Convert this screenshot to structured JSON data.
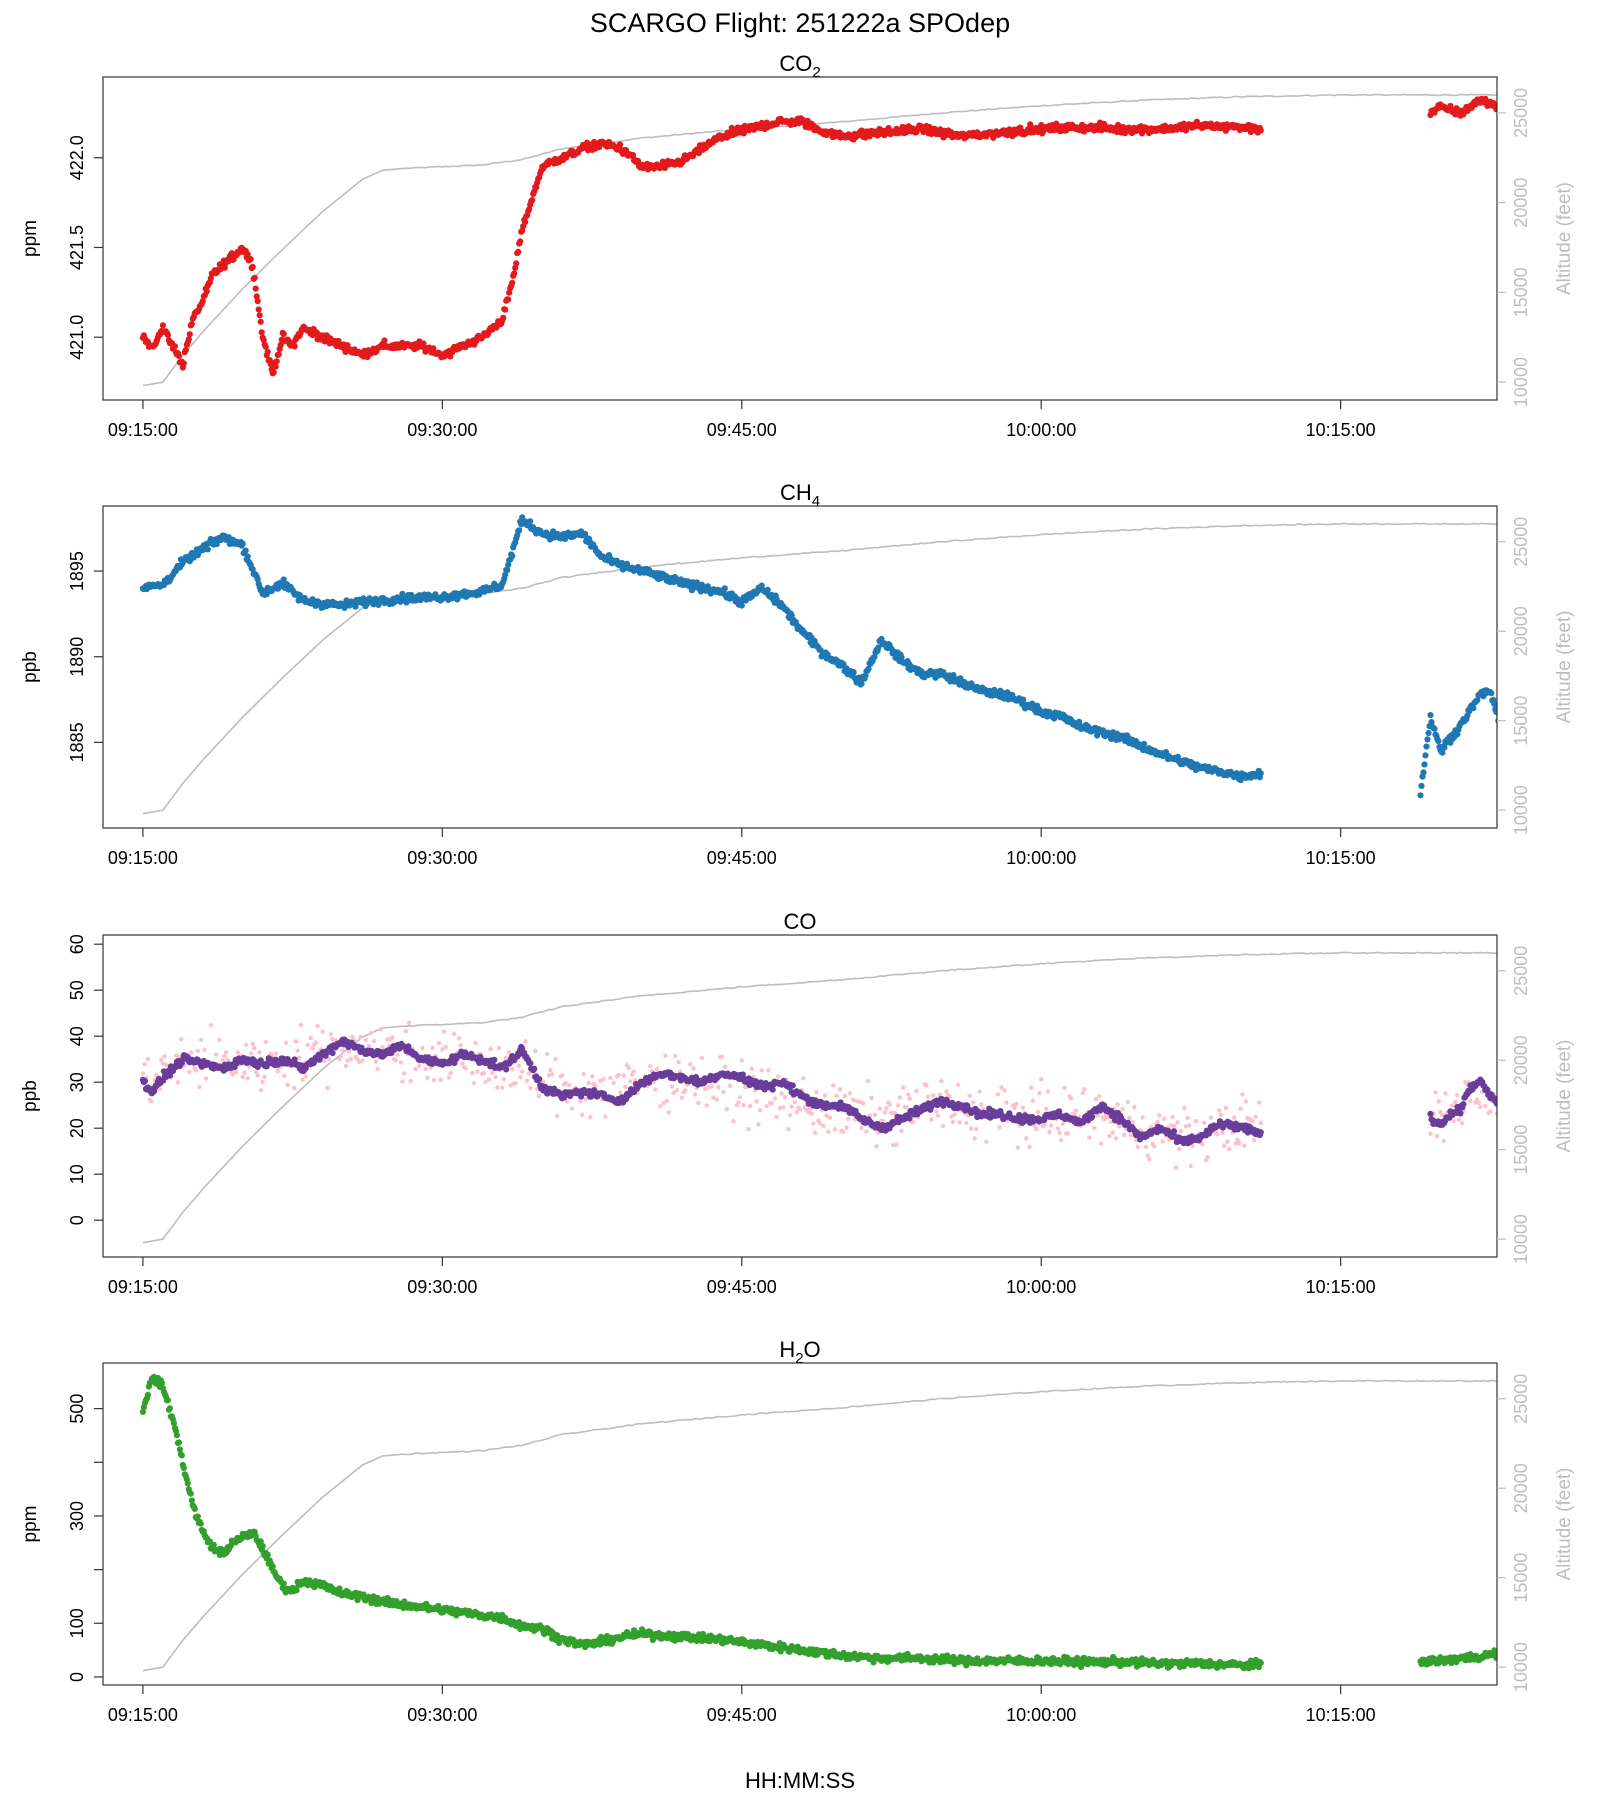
{
  "figure": {
    "title": "SCARGO Flight: 251222a  SPOdep",
    "xlabel": "HH:MM:SS",
    "x_ticks": [
      "09:15:00",
      "09:30:00",
      "09:45:00",
      "10:00:00",
      "10:15:00"
    ],
    "altitude_axis_label": "Altitude (feet)",
    "altitude_ticks": [
      10000,
      15000,
      20000,
      25000
    ]
  },
  "colors": {
    "co2": "#e31a1c",
    "ch4": "#1f78b4",
    "co_raw": "#ffc0cb",
    "co_avg": "#6a3d9a",
    "h2o": "#33a02c",
    "altitude": "#bdbdbd"
  },
  "chart_data": [
    {
      "type": "scatter",
      "title_main": "CO",
      "title_sub": "2",
      "ylabel": "ppm",
      "xlim": [
        "09:13:00",
        "10:22:50"
      ],
      "ylim": [
        420.65,
        422.45
      ],
      "y_ticks": [
        421.0,
        421.5,
        422.0
      ],
      "y_tick_labels": [
        "421.0",
        "421.5",
        "422.0"
      ],
      "altitude_ylim": [
        9000,
        27000
      ],
      "series": [
        {
          "x": [
            "09:15:00",
            "09:15:30",
            "09:16:00",
            "09:16:30",
            "09:17:00",
            "09:17:30",
            "09:18:00",
            "09:18:30",
            "09:19:00",
            "09:19:30",
            "09:20:00",
            "09:20:30",
            "09:21:00",
            "09:21:30",
            "09:22:00",
            "09:22:30",
            "09:23:00",
            "09:24:00",
            "09:25:00",
            "09:26:00",
            "09:27:00",
            "09:28:00",
            "09:29:00",
            "09:30:00",
            "09:31:00",
            "09:32:00",
            "09:32:30",
            "09:33:00",
            "09:33:30",
            "09:34:00",
            "09:35:00",
            "09:36:00",
            "09:37:00",
            "09:38:00",
            "09:39:00",
            "09:40:00",
            "09:41:00",
            "09:42:00",
            "09:43:00",
            "09:44:00",
            "09:45:00",
            "09:46:00",
            "09:47:00",
            "09:48:00",
            "09:49:00",
            "09:50:00",
            "09:52:00",
            "09:54:00",
            "09:56:00",
            "09:58:00",
            "10:00:00",
            "10:02:00",
            "10:04:00",
            "10:06:00",
            "10:08:00",
            "10:10:00",
            "10:11:00"
          ],
          "y": [
            421.0,
            420.95,
            421.05,
            420.95,
            420.85,
            421.1,
            421.2,
            421.35,
            421.4,
            421.45,
            421.5,
            421.4,
            421.0,
            420.8,
            421.0,
            420.95,
            421.05,
            421.0,
            420.95,
            420.9,
            420.95,
            420.95,
            420.95,
            420.9,
            420.95,
            421.0,
            421.05,
            421.1,
            421.3,
            421.6,
            421.95,
            422.0,
            422.05,
            422.08,
            422.05,
            421.95,
            421.95,
            421.98,
            422.05,
            422.12,
            422.15,
            422.18,
            422.2,
            422.2,
            422.15,
            422.12,
            422.14,
            422.16,
            422.12,
            422.14,
            422.16,
            422.17,
            422.16,
            422.16,
            422.18,
            422.17,
            422.16
          ]
        },
        {
          "x": [
            "10:19:30",
            "10:20:00",
            "10:21:00",
            "10:22:00",
            "10:23:00",
            "10:24:00",
            "10:24:30"
          ],
          "y": [
            422.25,
            422.28,
            422.25,
            422.32,
            422.28,
            422.25,
            422.22
          ]
        }
      ],
      "altitude": {
        "x": [
          "09:15:00",
          "09:16:00",
          "09:17:00",
          "09:18:00",
          "09:19:00",
          "09:20:00",
          "09:22:00",
          "09:24:00",
          "09:26:00",
          "09:27:00",
          "09:28:00",
          "09:30:00",
          "09:32:00",
          "09:34:00",
          "09:36:00",
          "09:40:00",
          "09:45:00",
          "09:50:00",
          "09:55:00",
          "10:00:00",
          "10:05:00",
          "10:10:00",
          "10:15:00",
          "10:20:00",
          "10:24:30"
        ],
        "y": [
          9800,
          10000,
          11500,
          12800,
          14000,
          15200,
          17400,
          19500,
          21300,
          21800,
          21900,
          22000,
          22100,
          22400,
          23000,
          23600,
          24100,
          24500,
          25000,
          25400,
          25700,
          25900,
          26000,
          26000,
          26000
        ]
      }
    },
    {
      "type": "scatter",
      "title_main": "CH",
      "title_sub": "4",
      "ylabel": "ppb",
      "xlim": [
        "09:13:00",
        "10:22:50"
      ],
      "ylim": [
        1880.0,
        1898.8
      ],
      "y_ticks": [
        1885,
        1890,
        1895
      ],
      "y_tick_labels": [
        "1885",
        "1890",
        "1895"
      ],
      "altitude_ylim": [
        9000,
        27000
      ],
      "series": [
        {
          "x": [
            "09:15:00",
            "09:16:00",
            "09:17:00",
            "09:18:00",
            "09:19:00",
            "09:20:00",
            "09:21:00",
            "09:22:00",
            "09:23:00",
            "09:24:00",
            "09:25:00",
            "09:26:00",
            "09:28:00",
            "09:30:00",
            "09:32:00",
            "09:33:00",
            "09:34:00",
            "09:35:00",
            "09:36:00",
            "09:37:00",
            "09:38:00",
            "09:39:00",
            "09:40:00",
            "09:42:00",
            "09:44:00",
            "09:45:00",
            "09:46:00",
            "09:47:00",
            "09:48:00",
            "09:49:00",
            "09:50:00",
            "09:51:00",
            "09:52:00",
            "09:53:00",
            "09:54:00",
            "09:55:00",
            "09:56:00",
            "09:57:00",
            "09:58:00",
            "09:59:00",
            "10:00:00",
            "10:01:00",
            "10:02:00",
            "10:03:00",
            "10:04:00",
            "10:05:00",
            "10:06:00",
            "10:07:00",
            "10:08:00",
            "10:09:00",
            "10:10:00",
            "10:11:00"
          ],
          "y": [
            1894,
            1894.2,
            1895.5,
            1896.3,
            1897,
            1896.5,
            1893.7,
            1894.3,
            1893.3,
            1893.1,
            1893,
            1893.2,
            1893.4,
            1893.5,
            1893.8,
            1894.2,
            1898,
            1897.2,
            1897,
            1897.2,
            1895.8,
            1895.3,
            1895,
            1894.3,
            1893.8,
            1893.2,
            1894,
            1893,
            1891.5,
            1890.3,
            1889.5,
            1888.5,
            1891,
            1889.8,
            1889,
            1889,
            1888.5,
            1888,
            1887.8,
            1887.4,
            1886.8,
            1886.5,
            1885.9,
            1885.6,
            1885.3,
            1884.8,
            1884.3,
            1883.9,
            1883.5,
            1883.3,
            1883,
            1883.2
          ]
        },
        {
          "x": [
            "10:19:00",
            "10:19:30",
            "10:20:00",
            "10:21:00",
            "10:22:00",
            "10:22:30",
            "10:23:00",
            "10:23:30",
            "10:24:00",
            "10:24:30"
          ],
          "y": [
            1882,
            1886.5,
            1884.5,
            1886,
            1887.8,
            1888,
            1886,
            1884.5,
            1883.5,
            1882.5
          ]
        }
      ],
      "altitude": {
        "x": [
          "09:15:00",
          "09:16:00",
          "09:17:00",
          "09:18:00",
          "09:19:00",
          "09:20:00",
          "09:22:00",
          "09:24:00",
          "09:26:00",
          "09:27:00",
          "09:28:00",
          "09:30:00",
          "09:32:00",
          "09:34:00",
          "09:36:00",
          "09:40:00",
          "09:45:00",
          "09:50:00",
          "09:55:00",
          "10:00:00",
          "10:05:00",
          "10:10:00",
          "10:15:00",
          "10:20:00",
          "10:24:30"
        ],
        "y": [
          9800,
          10000,
          11500,
          12800,
          14000,
          15200,
          17400,
          19500,
          21300,
          21800,
          21900,
          22000,
          22100,
          22400,
          23000,
          23600,
          24100,
          24500,
          25000,
          25400,
          25700,
          25900,
          26000,
          26000,
          26000
        ]
      }
    },
    {
      "type": "scatter",
      "title_main": "CO",
      "title_sub": "",
      "ylabel": "ppb",
      "xlim": [
        "09:13:00",
        "10:22:50"
      ],
      "ylim": [
        -8,
        62
      ],
      "y_ticks": [
        0,
        10,
        20,
        30,
        40,
        50,
        60
      ],
      "y_tick_labels": [
        "0",
        "10",
        "20",
        "30",
        "40",
        "50",
        "60"
      ],
      "altitude_ylim": [
        9000,
        27000
      ],
      "series": [
        {
          "role": "raw",
          "x": [
            "09:15:00",
            "09:16:00",
            "09:17:00",
            "09:18:00",
            "09:20:00",
            "09:22:00",
            "09:24:00",
            "09:26:00",
            "09:28:00",
            "09:30:00",
            "09:32:00",
            "09:34:00",
            "09:36:00",
            "09:38:00",
            "09:40:00",
            "09:42:00",
            "09:44:00",
            "09:46:00",
            "09:48:00",
            "09:50:00",
            "09:52:00",
            "09:54:00",
            "09:56:00",
            "09:58:00",
            "10:00:00",
            "10:02:00",
            "10:04:00",
            "10:06:00",
            "10:08:00",
            "10:10:00",
            "10:11:00"
          ],
          "y": [
            30,
            32,
            34,
            35,
            34,
            35,
            37,
            38,
            36,
            35,
            34,
            32,
            29,
            28,
            30,
            31,
            29,
            27,
            25,
            23,
            22,
            25,
            24,
            23,
            22,
            23,
            21,
            19,
            18,
            21,
            20
          ]
        },
        {
          "role": "raw",
          "x": [
            "10:19:30",
            "10:20:30",
            "10:21:30",
            "10:22:30",
            "10:23:30",
            "10:24:30"
          ],
          "y": [
            22,
            23,
            28,
            27,
            22,
            19
          ]
        },
        {
          "role": "mean",
          "x": [
            "09:15:00",
            "09:15:30",
            "09:16:00",
            "09:17:00",
            "09:18:00",
            "09:19:00",
            "09:20:00",
            "09:21:00",
            "09:22:00",
            "09:23:00",
            "09:24:00",
            "09:25:00",
            "09:26:00",
            "09:27:00",
            "09:28:00",
            "09:29:00",
            "09:30:00",
            "09:31:00",
            "09:32:00",
            "09:33:00",
            "09:34:00",
            "09:35:00",
            "09:36:00",
            "09:37:00",
            "09:38:00",
            "09:39:00",
            "09:40:00",
            "09:41:00",
            "09:42:00",
            "09:43:00",
            "09:44:00",
            "09:45:00",
            "09:46:00",
            "09:47:00",
            "09:48:00",
            "09:49:00",
            "09:50:00",
            "09:51:00",
            "09:52:00",
            "09:53:00",
            "09:54:00",
            "09:55:00",
            "09:56:00",
            "09:57:00",
            "09:58:00",
            "09:59:00",
            "10:00:00",
            "10:01:00",
            "10:02:00",
            "10:03:00",
            "10:04:00",
            "10:05:00",
            "10:06:00",
            "10:07:00",
            "10:08:00",
            "10:09:00",
            "10:10:00",
            "10:11:00"
          ],
          "y": [
            30,
            28,
            31,
            35,
            34,
            33,
            35,
            34,
            35,
            33,
            36,
            39,
            37,
            36,
            38,
            35,
            34,
            36,
            35,
            33,
            37,
            29,
            27,
            28,
            27,
            26,
            30,
            32,
            31,
            30,
            32,
            31,
            29,
            30,
            27,
            25,
            25,
            22,
            20,
            22,
            24,
            26,
            25,
            23,
            23,
            22,
            22,
            23,
            21,
            25,
            22,
            18,
            20,
            17,
            18,
            21,
            20,
            19
          ]
        },
        {
          "role": "mean",
          "x": [
            "10:19:30",
            "10:20:00",
            "10:20:30",
            "10:21:00",
            "10:21:30",
            "10:22:00",
            "10:22:30",
            "10:23:00",
            "10:23:30",
            "10:24:00",
            "10:24:30"
          ],
          "y": [
            22,
            21,
            23,
            24,
            29,
            30,
            27,
            25,
            23,
            21,
            19
          ]
        }
      ],
      "altitude": {
        "x": [
          "09:15:00",
          "09:16:00",
          "09:17:00",
          "09:18:00",
          "09:19:00",
          "09:20:00",
          "09:22:00",
          "09:24:00",
          "09:26:00",
          "09:27:00",
          "09:28:00",
          "09:30:00",
          "09:32:00",
          "09:34:00",
          "09:36:00",
          "09:40:00",
          "09:45:00",
          "09:50:00",
          "09:55:00",
          "10:00:00",
          "10:05:00",
          "10:10:00",
          "10:15:00",
          "10:20:00",
          "10:24:30"
        ],
        "y": [
          9800,
          10000,
          11500,
          12800,
          14000,
          15200,
          17400,
          19500,
          21300,
          21800,
          21900,
          22000,
          22100,
          22400,
          23000,
          23600,
          24100,
          24500,
          25000,
          25400,
          25700,
          25900,
          26000,
          26000,
          26000
        ]
      }
    },
    {
      "type": "scatter",
      "title_main": "H",
      "title_sub": "2",
      "title_tail": "O",
      "ylabel": "ppm",
      "xlim": [
        "09:13:00",
        "10:22:50"
      ],
      "ylim": [
        -15,
        585
      ],
      "y_ticks": [
        0,
        100,
        200,
        300,
        400,
        500
      ],
      "y_tick_labels": [
        "0",
        "100",
        "",
        "300",
        "",
        "500"
      ],
      "altitude_ylim": [
        9000,
        27000
      ],
      "series": [
        {
          "x": [
            "09:15:00",
            "09:15:30",
            "09:16:00",
            "09:16:30",
            "09:17:00",
            "09:17:30",
            "09:18:00",
            "09:18:30",
            "09:19:00",
            "09:19:30",
            "09:20:00",
            "09:20:30",
            "09:21:00",
            "09:21:30",
            "09:22:00",
            "09:22:30",
            "09:23:00",
            "09:24:00",
            "09:25:00",
            "09:26:00",
            "09:27:00",
            "09:28:00",
            "09:29:00",
            "09:30:00",
            "09:31:00",
            "09:32:00",
            "09:33:00",
            "09:34:00",
            "09:35:00",
            "09:36:00",
            "09:37:00",
            "09:38:00",
            "09:39:00",
            "09:40:00",
            "09:42:00",
            "09:44:00",
            "09:46:00",
            "09:48:00",
            "09:50:00",
            "09:52:00",
            "09:54:00",
            "09:56:00",
            "09:58:00",
            "10:00:00",
            "10:02:00",
            "10:04:00",
            "10:06:00",
            "10:08:00",
            "10:10:00",
            "10:11:00"
          ],
          "y": [
            500,
            560,
            540,
            480,
            400,
            320,
            270,
            240,
            230,
            250,
            260,
            270,
            240,
            200,
            170,
            160,
            180,
            170,
            155,
            150,
            140,
            135,
            130,
            125,
            120,
            115,
            110,
            95,
            90,
            70,
            60,
            65,
            75,
            80,
            75,
            70,
            60,
            50,
            40,
            35,
            35,
            30,
            30,
            30,
            28,
            28,
            25,
            25,
            22,
            22
          ]
        },
        {
          "x": [
            "10:19:00",
            "10:20:00",
            "10:21:00",
            "10:22:00",
            "10:23:00",
            "10:24:00",
            "10:24:30"
          ],
          "y": [
            30,
            30,
            35,
            38,
            45,
            42,
            40
          ]
        }
      ],
      "altitude": {
        "x": [
          "09:15:00",
          "09:16:00",
          "09:17:00",
          "09:18:00",
          "09:19:00",
          "09:20:00",
          "09:22:00",
          "09:24:00",
          "09:26:00",
          "09:27:00",
          "09:28:00",
          "09:30:00",
          "09:32:00",
          "09:34:00",
          "09:36:00",
          "09:40:00",
          "09:45:00",
          "09:50:00",
          "09:55:00",
          "10:00:00",
          "10:05:00",
          "10:10:00",
          "10:15:00",
          "10:20:00",
          "10:24:30"
        ],
        "y": [
          9800,
          10000,
          11500,
          12800,
          14000,
          15200,
          17400,
          19500,
          21300,
          21800,
          21900,
          22000,
          22100,
          22400,
          23000,
          23600,
          24100,
          24500,
          25000,
          25400,
          25700,
          25900,
          26000,
          26000,
          26000
        ]
      }
    }
  ]
}
